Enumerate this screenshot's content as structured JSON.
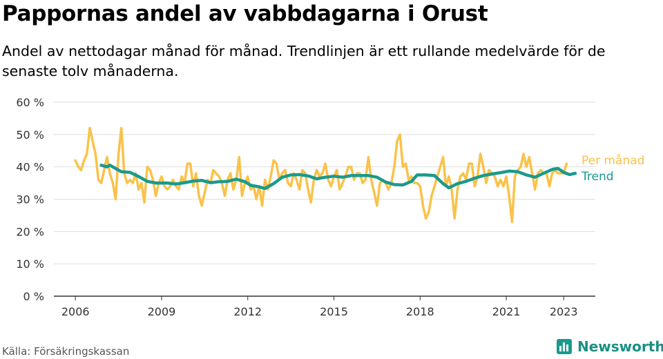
{
  "title": "Pappornas andel av vabbdagarna i Orust",
  "subtitle": "Andel av nettodagar månad för månad. Trendlinjen är ett rullande medelvärde för de senaste tolv månaderna.",
  "source": "Källa: Försäkringskassan",
  "brand": "Newsworthy",
  "colors": {
    "per_month": "#fac24a",
    "trend": "#1a9a8c",
    "grid": "#dddddd",
    "brand": "#1a8f85"
  },
  "chart_data": {
    "type": "line",
    "x_unit": "year",
    "x_ticks": [
      2006,
      2009,
      2012,
      2015,
      2018,
      2021,
      2023
    ],
    "y_ticks": [
      "0 %",
      "10 %",
      "20 %",
      "30 %",
      "40 %",
      "50 %",
      "60 %"
    ],
    "ylim": [
      0,
      60
    ],
    "xlim": [
      2005.25,
      2024.1
    ],
    "grid": true,
    "legend": "inline-right",
    "series": [
      {
        "name": "Per månad",
        "color": "#fac24a",
        "points": [
          [
            2006.0,
            42
          ],
          [
            2006.1,
            40
          ],
          [
            2006.2,
            39
          ],
          [
            2006.3,
            42
          ],
          [
            2006.4,
            44
          ],
          [
            2006.5,
            52
          ],
          [
            2006.6,
            48
          ],
          [
            2006.7,
            44
          ],
          [
            2006.8,
            36
          ],
          [
            2006.9,
            35
          ],
          [
            2007.0,
            39
          ],
          [
            2007.1,
            43
          ],
          [
            2007.2,
            38
          ],
          [
            2007.3,
            35
          ],
          [
            2007.4,
            30
          ],
          [
            2007.5,
            44
          ],
          [
            2007.6,
            52
          ],
          [
            2007.7,
            38
          ],
          [
            2007.8,
            35
          ],
          [
            2007.9,
            36
          ],
          [
            2008.0,
            35
          ],
          [
            2008.1,
            38
          ],
          [
            2008.2,
            33
          ],
          [
            2008.3,
            35
          ],
          [
            2008.4,
            29
          ],
          [
            2008.5,
            40
          ],
          [
            2008.6,
            39
          ],
          [
            2008.7,
            36
          ],
          [
            2008.8,
            31
          ],
          [
            2008.9,
            35
          ],
          [
            2009.0,
            37
          ],
          [
            2009.1,
            34
          ],
          [
            2009.2,
            33
          ],
          [
            2009.3,
            34
          ],
          [
            2009.4,
            36
          ],
          [
            2009.5,
            34
          ],
          [
            2009.6,
            33
          ],
          [
            2009.7,
            37
          ],
          [
            2009.8,
            35
          ],
          [
            2009.9,
            41
          ],
          [
            2010.0,
            41
          ],
          [
            2010.1,
            34
          ],
          [
            2010.2,
            38
          ],
          [
            2010.3,
            31
          ],
          [
            2010.4,
            28
          ],
          [
            2010.5,
            32
          ],
          [
            2010.6,
            36
          ],
          [
            2010.7,
            35
          ],
          [
            2010.8,
            39
          ],
          [
            2010.9,
            38
          ],
          [
            2011.0,
            37
          ],
          [
            2011.1,
            35
          ],
          [
            2011.2,
            31
          ],
          [
            2011.3,
            36
          ],
          [
            2011.4,
            38
          ],
          [
            2011.5,
            33
          ],
          [
            2011.6,
            36
          ],
          [
            2011.7,
            43
          ],
          [
            2011.8,
            31
          ],
          [
            2011.9,
            35
          ],
          [
            2012.0,
            37
          ],
          [
            2012.1,
            33
          ],
          [
            2012.2,
            34
          ],
          [
            2012.3,
            30
          ],
          [
            2012.4,
            34
          ],
          [
            2012.5,
            28
          ],
          [
            2012.6,
            36
          ],
          [
            2012.7,
            33
          ],
          [
            2012.8,
            37
          ],
          [
            2012.9,
            42
          ],
          [
            2013.0,
            41
          ],
          [
            2013.1,
            36
          ],
          [
            2013.2,
            38
          ],
          [
            2013.3,
            39
          ],
          [
            2013.4,
            35
          ],
          [
            2013.5,
            34
          ],
          [
            2013.6,
            38
          ],
          [
            2013.7,
            36
          ],
          [
            2013.8,
            33
          ],
          [
            2013.9,
            39
          ],
          [
            2014.0,
            38
          ],
          [
            2014.1,
            33
          ],
          [
            2014.2,
            29
          ],
          [
            2014.3,
            36
          ],
          [
            2014.4,
            39
          ],
          [
            2014.5,
            37
          ],
          [
            2014.6,
            38
          ],
          [
            2014.7,
            41
          ],
          [
            2014.8,
            36
          ],
          [
            2014.9,
            34
          ],
          [
            2015.0,
            37
          ],
          [
            2015.1,
            39
          ],
          [
            2015.2,
            33
          ],
          [
            2015.3,
            35
          ],
          [
            2015.4,
            37
          ],
          [
            2015.5,
            40
          ],
          [
            2015.6,
            40
          ],
          [
            2015.7,
            36
          ],
          [
            2015.8,
            38
          ],
          [
            2015.9,
            38
          ],
          [
            2016.0,
            35
          ],
          [
            2016.1,
            36
          ],
          [
            2016.2,
            43
          ],
          [
            2016.3,
            36
          ],
          [
            2016.4,
            32
          ],
          [
            2016.5,
            28
          ],
          [
            2016.6,
            35
          ],
          [
            2016.7,
            36
          ],
          [
            2016.8,
            35
          ],
          [
            2016.9,
            33
          ],
          [
            2017.0,
            35
          ],
          [
            2017.1,
            40
          ],
          [
            2017.2,
            48
          ],
          [
            2017.3,
            50
          ],
          [
            2017.4,
            40
          ],
          [
            2017.5,
            41
          ],
          [
            2017.6,
            36
          ],
          [
            2017.7,
            37
          ],
          [
            2017.8,
            35
          ],
          [
            2017.9,
            35
          ],
          [
            2018.0,
            34
          ],
          [
            2018.1,
            28
          ],
          [
            2018.2,
            24
          ],
          [
            2018.3,
            26
          ],
          [
            2018.4,
            31
          ],
          [
            2018.5,
            34
          ],
          [
            2018.6,
            37
          ],
          [
            2018.7,
            40
          ],
          [
            2018.8,
            43
          ],
          [
            2018.9,
            34
          ],
          [
            2019.0,
            37
          ],
          [
            2019.1,
            33
          ],
          [
            2019.2,
            24
          ],
          [
            2019.3,
            33
          ],
          [
            2019.4,
            37
          ],
          [
            2019.5,
            38
          ],
          [
            2019.6,
            36
          ],
          [
            2019.7,
            41
          ],
          [
            2019.8,
            41
          ],
          [
            2019.9,
            34
          ],
          [
            2020.0,
            37
          ],
          [
            2020.1,
            44
          ],
          [
            2020.2,
            40
          ],
          [
            2020.3,
            35
          ],
          [
            2020.4,
            39
          ],
          [
            2020.5,
            38
          ],
          [
            2020.6,
            37
          ],
          [
            2020.7,
            34
          ],
          [
            2020.8,
            36
          ],
          [
            2020.9,
            34
          ],
          [
            2021.0,
            37
          ],
          [
            2021.1,
            31
          ],
          [
            2021.2,
            23
          ],
          [
            2021.3,
            37
          ],
          [
            2021.4,
            39
          ],
          [
            2021.5,
            40
          ],
          [
            2021.6,
            44
          ],
          [
            2021.7,
            40
          ],
          [
            2021.8,
            43
          ],
          [
            2021.9,
            38
          ],
          [
            2022.0,
            33
          ],
          [
            2022.1,
            38
          ],
          [
            2022.2,
            39
          ],
          [
            2022.3,
            38
          ],
          [
            2022.4,
            38
          ],
          [
            2022.5,
            34
          ],
          [
            2022.6,
            38
          ],
          [
            2022.7,
            39
          ],
          [
            2022.8,
            38
          ],
          [
            2022.9,
            38
          ],
          [
            2023.0,
            38
          ],
          [
            2023.1,
            41
          ]
        ]
      },
      {
        "name": "Trend",
        "color": "#1a9a8c",
        "points": [
          [
            2006.9,
            40.5
          ],
          [
            2007.1,
            40
          ],
          [
            2007.2,
            40.5
          ],
          [
            2007.4,
            39.5
          ],
          [
            2007.6,
            38.5
          ],
          [
            2007.9,
            38.3
          ],
          [
            2008.2,
            37
          ],
          [
            2008.5,
            35.5
          ],
          [
            2008.8,
            35
          ],
          [
            2009.2,
            35
          ],
          [
            2009.5,
            34.7
          ],
          [
            2009.8,
            35.1
          ],
          [
            2010.1,
            35.6
          ],
          [
            2010.4,
            35.8
          ],
          [
            2010.7,
            35.1
          ],
          [
            2011.0,
            35.4
          ],
          [
            2011.3,
            35.5
          ],
          [
            2011.6,
            36.2
          ],
          [
            2011.9,
            35.4
          ],
          [
            2012.1,
            34.3
          ],
          [
            2012.4,
            33.8
          ],
          [
            2012.6,
            33.3
          ],
          [
            2012.9,
            34.8
          ],
          [
            2013.2,
            36.8
          ],
          [
            2013.5,
            37.5
          ],
          [
            2013.8,
            37.6
          ],
          [
            2014.1,
            37.2
          ],
          [
            2014.4,
            36.3
          ],
          [
            2014.7,
            36.8
          ],
          [
            2015.0,
            37.1
          ],
          [
            2015.3,
            36.8
          ],
          [
            2015.6,
            37.3
          ],
          [
            2015.9,
            37.3
          ],
          [
            2016.2,
            37.3
          ],
          [
            2016.5,
            36.8
          ],
          [
            2016.8,
            35.3
          ],
          [
            2017.1,
            34.5
          ],
          [
            2017.4,
            34.4
          ],
          [
            2017.7,
            35.5
          ],
          [
            2017.9,
            37.5
          ],
          [
            2018.2,
            37.5
          ],
          [
            2018.5,
            37.3
          ],
          [
            2018.8,
            34.8
          ],
          [
            2019.0,
            33.5
          ],
          [
            2019.3,
            34.8
          ],
          [
            2019.6,
            35.5
          ],
          [
            2019.9,
            36.5
          ],
          [
            2020.2,
            37.3
          ],
          [
            2020.5,
            37.8
          ],
          [
            2020.8,
            38.2
          ],
          [
            2021.1,
            38.7
          ],
          [
            2021.4,
            38.5
          ],
          [
            2021.7,
            37.5
          ],
          [
            2022.0,
            36.8
          ],
          [
            2022.3,
            38
          ],
          [
            2022.6,
            39.2
          ],
          [
            2022.8,
            39.5
          ],
          [
            2023.0,
            38.3
          ],
          [
            2023.2,
            37.6
          ],
          [
            2023.4,
            38
          ]
        ]
      }
    ]
  }
}
